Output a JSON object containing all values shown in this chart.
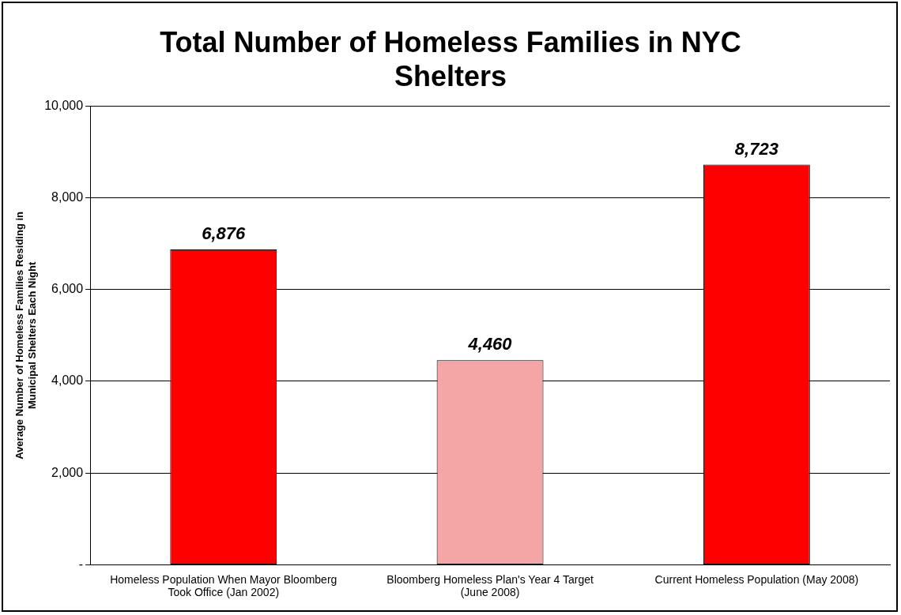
{
  "chart_data": {
    "type": "bar",
    "title": "Total Number of Homeless Families in NYC Shelters",
    "ylabel": "Average Number of Homeless Families Residing in Municipal Shelters Each Night",
    "categories": [
      "Homeless Population When Mayor Bloomberg Took Office (Jan 2002)",
      "Bloomberg Homeless Plan's Year 4 Target (June 2008)",
      "Current Homeless Population (May 2008)"
    ],
    "values": [
      6876,
      4460,
      8723
    ],
    "colors": [
      "#ff0000",
      "#f4a6a6",
      "#ff0000"
    ],
    "ylim": [
      0,
      10000
    ],
    "yticks": [
      {
        "value": 0,
        "label": "-"
      },
      {
        "value": 2000,
        "label": "2,000"
      },
      {
        "value": 4000,
        "label": "4,000"
      },
      {
        "value": 6000,
        "label": "6,000"
      },
      {
        "value": 8000,
        "label": "8,000"
      },
      {
        "value": 10000,
        "label": "10,000"
      }
    ],
    "value_labels": [
      "6,876",
      "4,460",
      "8,723"
    ],
    "grid": "y"
  }
}
